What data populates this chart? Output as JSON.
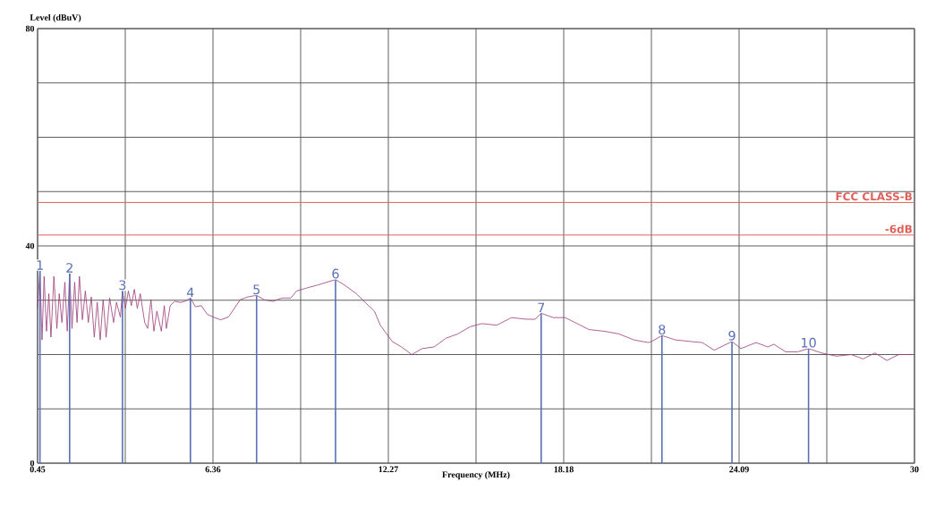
{
  "chart_data": {
    "type": "line",
    "xlabel": "Frequency (MHz)",
    "ylabel": "Level (dBuV)",
    "xlim": [
      0.45,
      30
    ],
    "ylim": [
      0,
      80
    ],
    "xticks": [
      0.45,
      {
        "value": 3.405,
        "label": null
      },
      6.36,
      {
        "value": 9.315,
        "label": null
      },
      12.27,
      {
        "value": 15.225,
        "label": null
      },
      18.18,
      {
        "value": 21.135,
        "label": null
      },
      24.09,
      {
        "value": 27.045,
        "label": null
      },
      30
    ],
    "yticks": [
      0,
      {
        "value": 10,
        "label": null
      },
      {
        "value": 20,
        "label": null
      },
      {
        "value": 30,
        "label": null
      },
      40,
      {
        "value": 50,
        "label": null
      },
      {
        "value": 60,
        "label": null
      },
      {
        "value": 70,
        "label": null
      },
      80
    ],
    "grid": true,
    "series": [
      {
        "color": "#9b3a78",
        "x": [
          0.45,
          0.53,
          0.6,
          0.67,
          0.75,
          0.83,
          0.9,
          1.0,
          1.1,
          1.18,
          1.27,
          1.37,
          1.45,
          1.53,
          1.61,
          1.7,
          1.78,
          1.86,
          1.96,
          2.06,
          2.16,
          2.26,
          2.36,
          2.46,
          2.56,
          2.66,
          2.76,
          2.88,
          3.01,
          3.11,
          3.24,
          3.31,
          3.41,
          3.51,
          3.61,
          3.71,
          3.81,
          3.91,
          4.06,
          4.16,
          4.27,
          4.37,
          4.47,
          4.62,
          4.72,
          4.79,
          4.92,
          5.07,
          5.27,
          5.42,
          5.6,
          5.77,
          5.97,
          6.17,
          6.37,
          6.62,
          6.88,
          7.08,
          7.28,
          7.53,
          7.83,
          8.08,
          8.38,
          8.68,
          8.98,
          9.18,
          9.49,
          9.89,
          10.19,
          10.49,
          10.79,
          11.19,
          11.49,
          11.8,
          12.0,
          12.4,
          12.71,
          13.06,
          13.41,
          13.81,
          14.21,
          14.61,
          15.02,
          15.42,
          15.92,
          16.42,
          16.92,
          17.22,
          17.42,
          17.83,
          18.23,
          18.63,
          19.03,
          19.53,
          20.04,
          20.54,
          21.04,
          21.14,
          21.49,
          21.94,
          22.45,
          22.85,
          23.25,
          23.85,
          24.15,
          24.66,
          25.06,
          25.26,
          25.66,
          26.06,
          26.43,
          26.86,
          27.37,
          27.87,
          28.27,
          28.67,
          29.07,
          29.47,
          29.93
        ],
        "values": [
          28.5,
          35.4,
          22.7,
          34.4,
          24.3,
          31.2,
          23.2,
          34.4,
          24.8,
          31.2,
          25.9,
          33.3,
          24.3,
          34.9,
          24.8,
          33.3,
          25.9,
          34.4,
          26.4,
          31.7,
          25.9,
          30.6,
          23.2,
          29.6,
          22.7,
          30.1,
          23.2,
          30.4,
          25.9,
          29.6,
          26.9,
          31.7,
          28.5,
          31.7,
          29.0,
          32.0,
          28.5,
          31.2,
          25.9,
          24.8,
          30.1,
          24.3,
          28.0,
          24.3,
          29.0,
          24.8,
          29.0,
          29.8,
          29.6,
          29.8,
          30.4,
          28.8,
          29.0,
          27.4,
          26.9,
          26.4,
          26.9,
          28.5,
          30.1,
          30.6,
          30.9,
          30.1,
          29.8,
          30.4,
          30.4,
          31.7,
          32.2,
          32.8,
          33.3,
          33.8,
          32.8,
          31.2,
          29.6,
          28.0,
          25.4,
          22.4,
          21.4,
          20.0,
          21.1,
          21.4,
          23.0,
          23.8,
          25.1,
          25.7,
          25.4,
          26.8,
          26.5,
          26.5,
          27.6,
          26.8,
          26.8,
          25.7,
          24.6,
          24.3,
          23.8,
          22.7,
          22.2,
          22.4,
          23.5,
          22.7,
          22.4,
          22.2,
          20.8,
          22.4,
          21.1,
          22.2,
          21.4,
          21.9,
          20.5,
          20.5,
          21.1,
          20.3,
          19.7,
          20.0,
          19.2,
          20.3,
          18.9,
          20.0,
          20.0
        ]
      }
    ],
    "ref_lines": [
      {
        "axis": "y",
        "value": 48,
        "label": "FCC CLASS-B",
        "color": "#e0605a"
      },
      {
        "axis": "y",
        "value": 42,
        "label": "-6dB",
        "color": "#e0605a"
      }
    ],
    "annotations": [
      {
        "text": "1",
        "x": 0.53,
        "y": 35.4
      },
      {
        "text": "2",
        "x": 1.53,
        "y": 34.9
      },
      {
        "text": "3",
        "x": 3.31,
        "y": 31.7
      },
      {
        "text": "4",
        "x": 5.6,
        "y": 30.4
      },
      {
        "text": "5",
        "x": 7.83,
        "y": 30.9
      },
      {
        "text": "6",
        "x": 10.49,
        "y": 33.8
      },
      {
        "text": "7",
        "x": 17.42,
        "y": 27.6
      },
      {
        "text": "8",
        "x": 21.49,
        "y": 23.5
      },
      {
        "text": "9",
        "x": 23.85,
        "y": 22.4
      },
      {
        "text": "10",
        "x": 26.43,
        "y": 21.1
      }
    ]
  }
}
